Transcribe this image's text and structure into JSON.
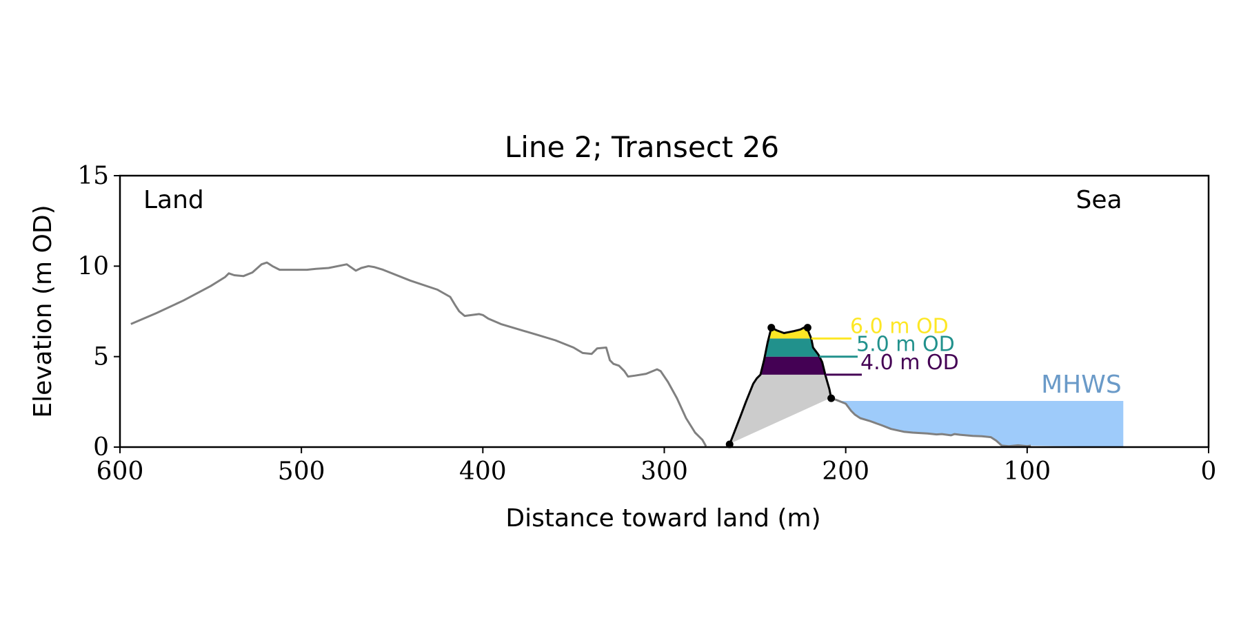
{
  "chart_data": {
    "type": "line",
    "title": "Line 2; Transect 26",
    "xlabel": "Distance toward land (m)",
    "ylabel": "Elevation (m OD)",
    "xlim": [
      600,
      0
    ],
    "ylim": [
      0,
      15
    ],
    "x_ticks": [
      600,
      500,
      400,
      300,
      200,
      100,
      0
    ],
    "x_tick_labels": [
      "600",
      "500",
      "400",
      "300",
      "200",
      "100",
      "0"
    ],
    "y_ticks": [
      0,
      5,
      10,
      15
    ],
    "y_tick_labels": [
      "0",
      "5",
      "10",
      "15"
    ],
    "grid": false,
    "annotations": {
      "land": "Land",
      "sea": "Sea"
    },
    "profile": {
      "color": "#808080",
      "x": [
        594,
        580,
        565,
        550,
        542,
        540,
        537,
        532,
        527,
        522,
        519,
        516,
        512,
        507,
        502,
        497,
        492,
        485,
        475,
        470,
        467,
        463,
        460,
        455,
        440,
        425,
        418,
        415,
        413,
        410,
        406,
        402,
        400,
        397,
        390,
        380,
        370,
        360,
        350,
        345,
        340,
        337,
        332,
        330,
        328,
        325,
        322,
        320,
        316,
        310,
        304,
        302,
        298,
        293,
        288,
        283,
        279,
        277
      ],
      "y": [
        6.8,
        7.4,
        8.1,
        8.9,
        9.4,
        9.6,
        9.5,
        9.45,
        9.65,
        10.1,
        10.2,
        10.0,
        9.8,
        9.8,
        9.8,
        9.8,
        9.85,
        9.9,
        10.1,
        9.75,
        9.9,
        10.0,
        9.95,
        9.8,
        9.2,
        8.7,
        8.3,
        7.8,
        7.5,
        7.25,
        7.3,
        7.35,
        7.3,
        7.1,
        6.8,
        6.5,
        6.2,
        5.9,
        5.5,
        5.2,
        5.15,
        5.45,
        5.5,
        4.8,
        4.6,
        4.5,
        4.2,
        3.9,
        3.95,
        4.05,
        4.3,
        4.2,
        3.6,
        2.7,
        1.6,
        0.8,
        0.4,
        0.05
      ]
    },
    "nearshore": {
      "color": "#808080",
      "x": [
        208,
        205,
        200,
        197,
        195,
        192,
        187,
        180,
        175,
        168,
        163,
        155,
        150,
        147,
        142,
        140,
        137,
        130,
        125,
        120,
        117,
        114,
        110,
        105,
        100,
        98
      ],
      "y": [
        2.7,
        2.6,
        2.4,
        2.0,
        1.8,
        1.6,
        1.45,
        1.2,
        1.0,
        0.85,
        0.8,
        0.75,
        0.7,
        0.72,
        0.65,
        0.72,
        0.68,
        0.62,
        0.6,
        0.55,
        0.35,
        0.08,
        0.05,
        0.1,
        0.05,
        0.08
      ]
    },
    "dune": {
      "color": "#000000",
      "x": [
        264,
        258,
        255,
        251,
        249,
        247,
        245,
        243,
        241,
        238,
        234,
        229,
        225,
        223,
        221,
        219,
        218,
        215,
        213,
        211,
        209,
        208
      ],
      "y": [
        0.15,
        1.7,
        2.5,
        3.5,
        3.8,
        4.0,
        4.8,
        5.8,
        6.6,
        6.45,
        6.3,
        6.4,
        6.5,
        6.6,
        6.5,
        6.0,
        5.5,
        5.1,
        4.7,
        3.9,
        3.2,
        2.7
      ],
      "markers": [
        [
          264,
          0.15
        ],
        [
          241,
          6.6
        ],
        [
          221,
          6.6
        ],
        [
          208,
          2.7
        ]
      ],
      "fill_color": "#cccccc"
    },
    "series": [
      {
        "name": "6.0 m OD",
        "level": 6.0,
        "color": "#fde725"
      },
      {
        "name": "5.0 m OD",
        "level": 5.0,
        "color": "#21918c"
      },
      {
        "name": "4.0 m OD",
        "level": 4.0,
        "color": "#440154"
      }
    ],
    "mhws": {
      "label": "MHWS",
      "level": 2.55,
      "x_start": 208,
      "x_end": 47,
      "fill_color": "#9ecbfa",
      "label_color": "#6a9ac8"
    }
  }
}
